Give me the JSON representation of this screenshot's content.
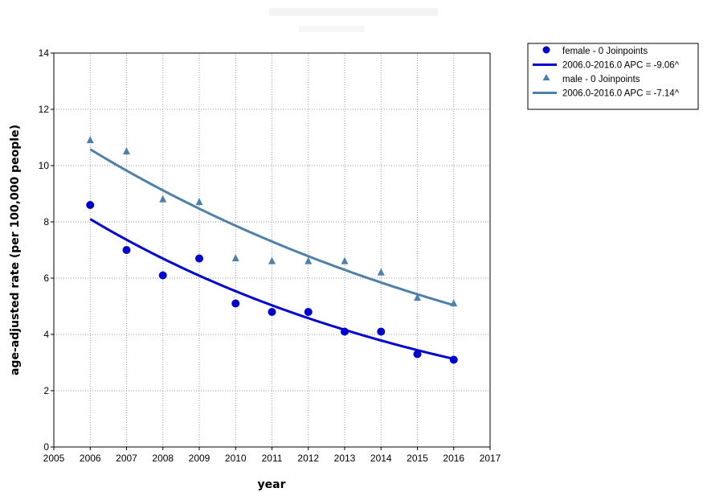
{
  "chart_data": {
    "type": "scatter",
    "title": "",
    "xlabel": "year",
    "ylabel": "age-adjusted rate (per 100,000 people)",
    "xlim": [
      2005,
      2017
    ],
    "ylim": [
      0,
      14
    ],
    "x_ticks": [
      "2005",
      "2006",
      "2007",
      "2008",
      "2009",
      "2010",
      "2011",
      "2012",
      "2013",
      "2014",
      "2015",
      "2016",
      "2017"
    ],
    "y_ticks": [
      "0",
      "2",
      "4",
      "6",
      "8",
      "10",
      "12",
      "14"
    ],
    "grid": true,
    "legend_position": "top-right, outside plot",
    "series": [
      {
        "name": "female - 0 Joinpoints",
        "marker": "circle",
        "color": "#0000CC",
        "x": [
          2006,
          2007,
          2008,
          2009,
          2010,
          2011,
          2012,
          2013,
          2014,
          2015,
          2016
        ],
        "y": [
          8.6,
          7.0,
          6.1,
          6.7,
          5.1,
          4.8,
          4.8,
          4.1,
          4.1,
          3.3,
          3.1
        ]
      },
      {
        "name": "2006.0-2016.0 APC = -9.06^",
        "line": "fit",
        "color": "#0000CC",
        "x": [
          2006,
          2007,
          2008,
          2009,
          2010,
          2011,
          2012,
          2013,
          2014,
          2015,
          2016
        ],
        "y": [
          8.1,
          7.37,
          6.7,
          6.09,
          5.54,
          5.04,
          4.58,
          4.17,
          3.79,
          3.45,
          3.13
        ]
      },
      {
        "name": "male - 0 Joinpoints",
        "marker": "triangle",
        "color": "#4F81A8",
        "x": [
          2006,
          2007,
          2008,
          2009,
          2010,
          2011,
          2012,
          2013,
          2014,
          2015,
          2016
        ],
        "y": [
          10.9,
          10.5,
          8.8,
          8.7,
          6.7,
          6.6,
          6.6,
          6.6,
          6.2,
          5.3,
          5.1
        ]
      },
      {
        "name": "2006.0-2016.0 APC = -7.14^",
        "line": "fit",
        "color": "#4F81A8",
        "x": [
          2006,
          2007,
          2008,
          2009,
          2010,
          2011,
          2012,
          2013,
          2014,
          2015,
          2016
        ],
        "y": [
          10.58,
          9.82,
          9.12,
          8.47,
          7.86,
          7.3,
          6.78,
          6.29,
          5.84,
          5.43,
          5.04
        ]
      }
    ]
  },
  "legend": {
    "items": [
      {
        "label": "female - 0 Joinpoints",
        "kind": "circle",
        "color": "#0000CC"
      },
      {
        "label": "2006.0-2016.0 APC  = -9.06^",
        "kind": "line",
        "color": "#0000CC"
      },
      {
        "label": "male - 0 Joinpoints",
        "kind": "triangle",
        "color": "#4F81A8"
      },
      {
        "label": "2006.0-2016.0 APC  = -7.14^",
        "kind": "line",
        "color": "#4F81A8"
      }
    ]
  }
}
